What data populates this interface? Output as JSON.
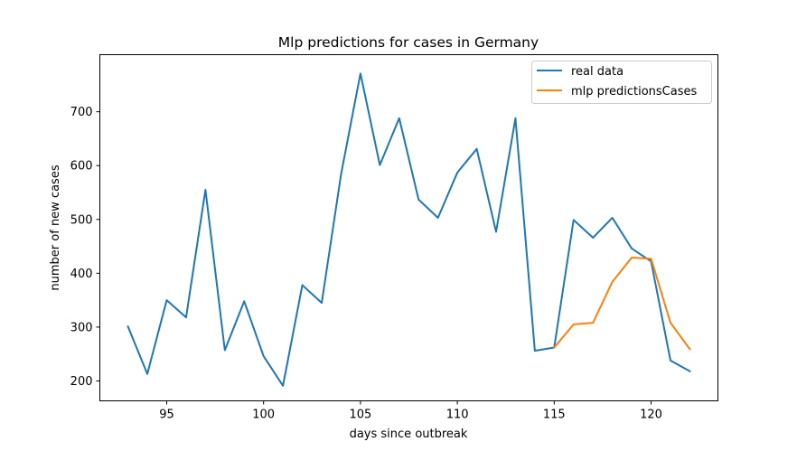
{
  "chart_data": {
    "type": "line",
    "title": "Mlp predictions for cases in  Germany",
    "xlabel": "days since outbreak",
    "ylabel": "number of new cases",
    "xlim": [
      91.55,
      123.45
    ],
    "ylim": [
      163,
      806
    ],
    "xticks": [
      95,
      100,
      105,
      110,
      115,
      120
    ],
    "yticks": [
      200,
      300,
      400,
      500,
      600,
      700
    ],
    "grid": false,
    "legend_position": "top-right",
    "series": [
      {
        "name": "real data",
        "color": "#1f77b4",
        "x": [
          93,
          94,
          95,
          96,
          97,
          98,
          99,
          100,
          101,
          102,
          103,
          104,
          105,
          106,
          107,
          108,
          109,
          110,
          111,
          112,
          113,
          114,
          115,
          116,
          117,
          118,
          119,
          120,
          121,
          122
        ],
        "y": [
          301,
          213,
          350,
          318,
          555,
          257,
          348,
          246,
          191,
          378,
          345,
          584,
          771,
          601,
          688,
          537,
          503,
          587,
          631,
          477,
          688,
          256,
          262,
          499,
          466,
          503,
          446,
          422,
          238,
          218
        ]
      },
      {
        "name": "mlp predictionsCases",
        "color": "#ff7f0e",
        "x": [
          115,
          116,
          117,
          118,
          119,
          120,
          121,
          122
        ],
        "y": [
          262,
          305,
          308,
          384,
          429,
          427,
          308,
          259
        ]
      }
    ]
  }
}
